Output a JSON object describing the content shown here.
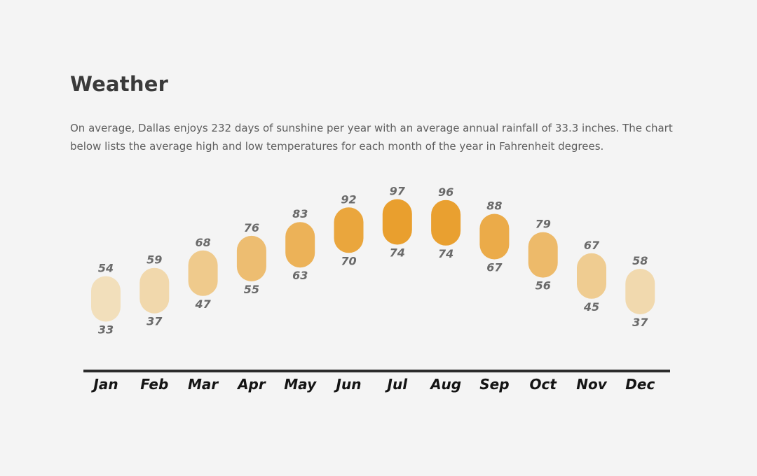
{
  "section": {
    "title": "Weather",
    "description": "On average, Dallas enjoys 232 days of sunshine per year with an average annual rainfall of 33.3 inches. The chart below lists the average high and low temperatures for each month of the year in Fahrenheit degrees."
  },
  "chart_data": {
    "type": "range-bar",
    "title": "",
    "units": "°F",
    "categories": [
      "Jan",
      "Feb",
      "Mar",
      "Apr",
      "May",
      "Jun",
      "Jul",
      "Aug",
      "Sep",
      "Oct",
      "Nov",
      "Dec"
    ],
    "series": [
      {
        "name": "Average High",
        "values": [
          54,
          59,
          68,
          76,
          83,
          92,
          97,
          96,
          88,
          79,
          67,
          58
        ]
      },
      {
        "name": "Average Low",
        "values": [
          33,
          37,
          47,
          55,
          63,
          70,
          74,
          74,
          67,
          56,
          45,
          37
        ]
      }
    ],
    "ylim": [
      30,
      100
    ],
    "color_scale": {
      "cool": "#f2dfbb",
      "hot": "#e99f2e"
    },
    "axis_color": "#2b2b2b",
    "grid": false,
    "legend": "none"
  }
}
